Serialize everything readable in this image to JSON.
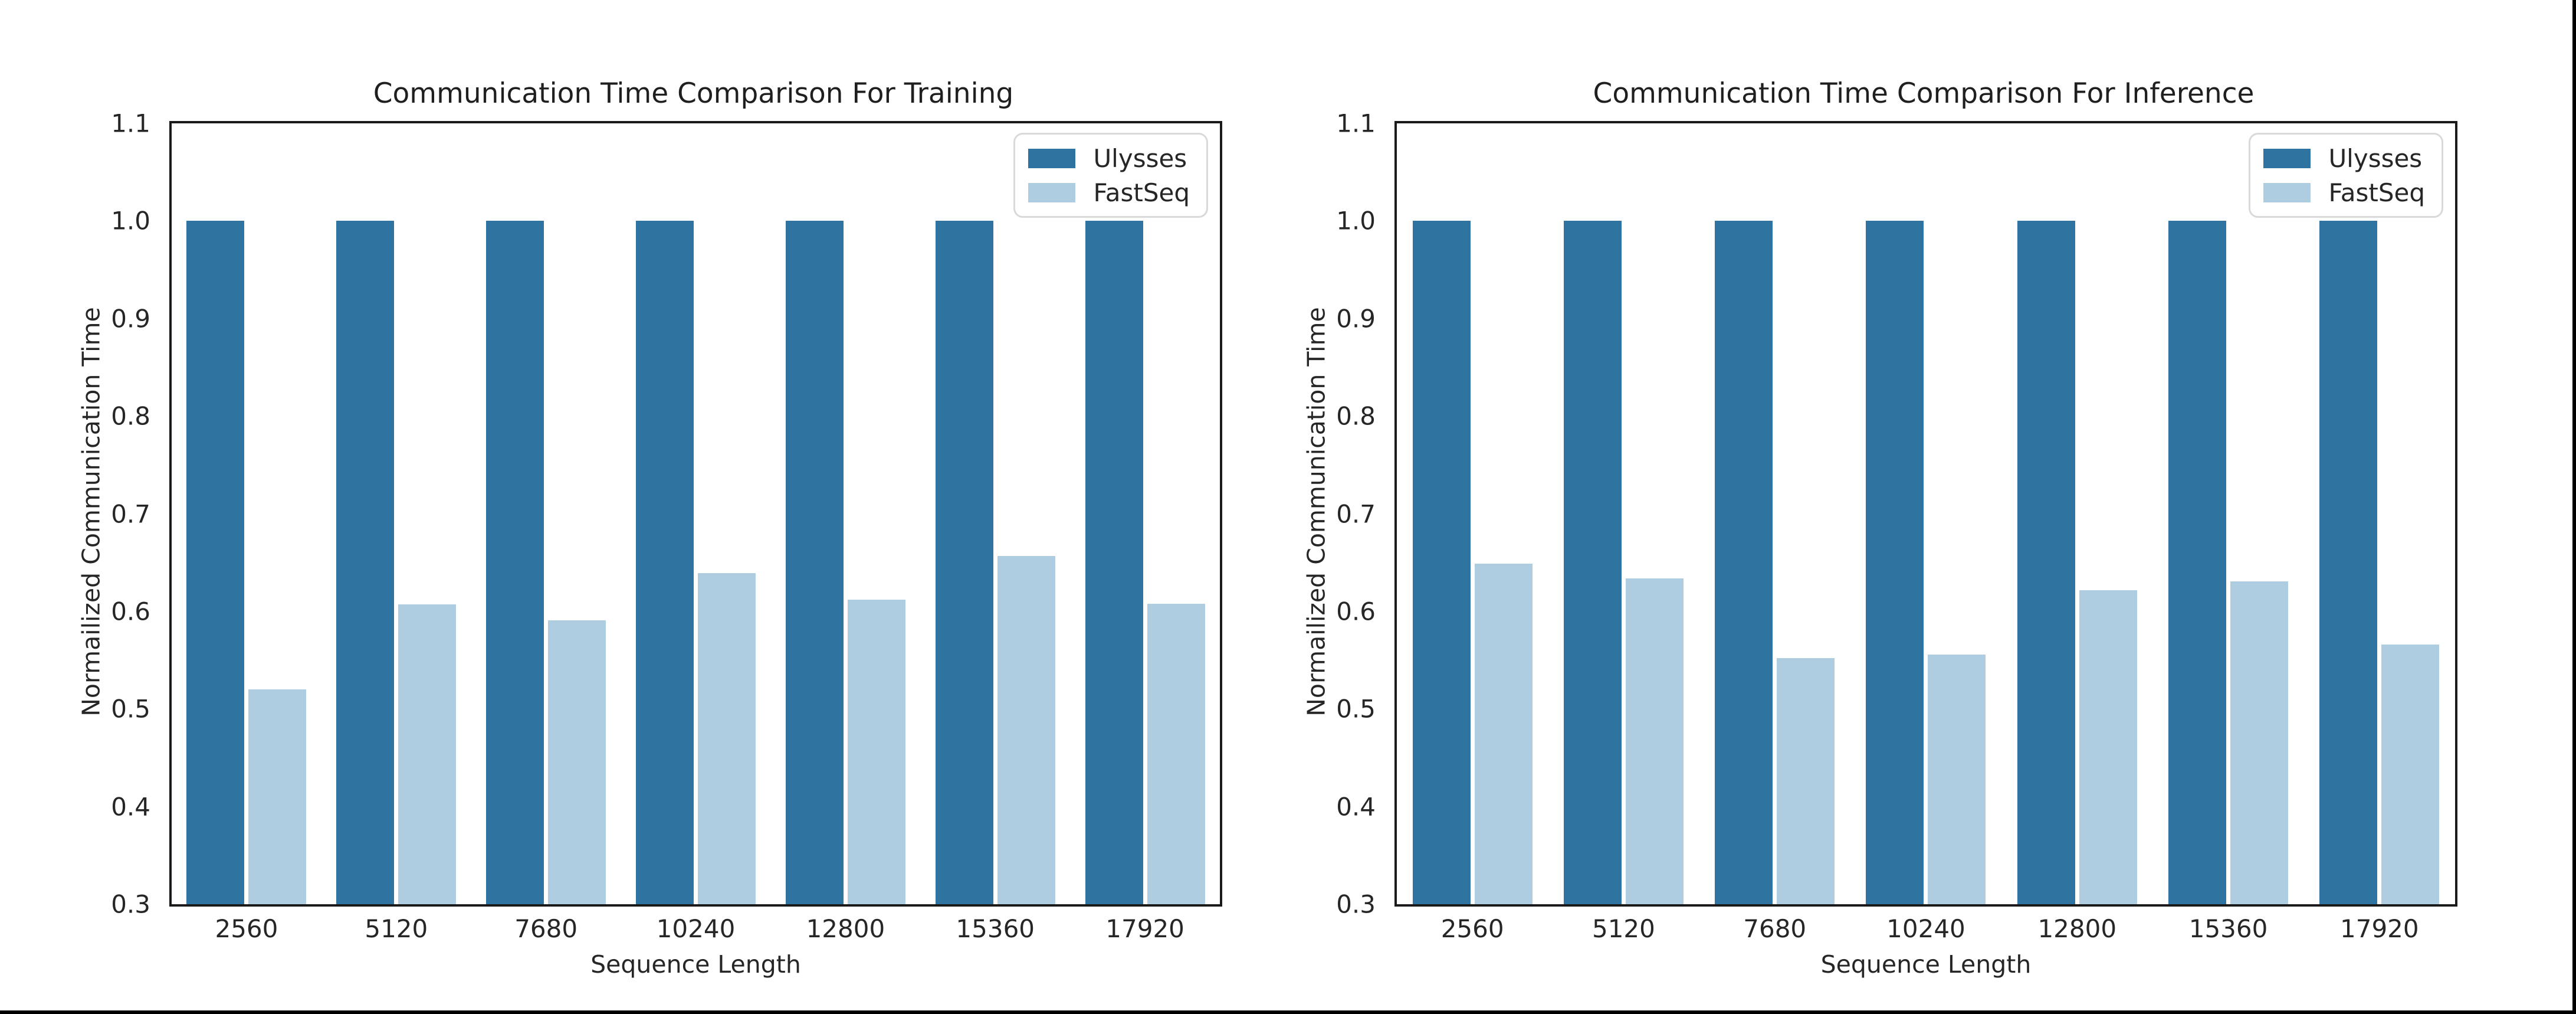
{
  "figure": {
    "background": "#ffffff",
    "outer_border_color": "#000000",
    "spine_color": "#1a1a1a",
    "legend_border_color": "#d9d9d9",
    "text_color": "#262626",
    "series_colors": {
      "ulysses": "#2F73A0",
      "fastseq": "#AFCDE1"
    }
  },
  "chart_data": [
    {
      "type": "bar",
      "title": "Communication Time Comparison For Training",
      "xlabel": "Sequence Length",
      "ylabel": "Normailized Communication Time",
      "categories": [
        "2560",
        "5120",
        "7680",
        "10240",
        "12800",
        "15360",
        "17920"
      ],
      "series": [
        {
          "name": "Ulysses",
          "values": [
            1.0,
            1.0,
            1.0,
            1.0,
            1.0,
            1.0,
            1.0
          ]
        },
        {
          "name": "FastSeq",
          "values": [
            0.52,
            0.607,
            0.591,
            0.639,
            0.612,
            0.657,
            0.608
          ]
        }
      ],
      "ylim": [
        0.3,
        1.1
      ],
      "yticks": [
        0.3,
        0.4,
        0.5,
        0.6,
        0.7,
        0.8,
        0.9,
        1.0,
        1.1
      ],
      "legend_position": "upper right",
      "grid": false
    },
    {
      "type": "bar",
      "title": "Communication Time Comparison For Inference",
      "xlabel": "Sequence Length",
      "ylabel": "Normailized Communication Time",
      "categories": [
        "2560",
        "5120",
        "7680",
        "10240",
        "12800",
        "15360",
        "17920"
      ],
      "series": [
        {
          "name": "Ulysses",
          "values": [
            1.0,
            1.0,
            1.0,
            1.0,
            1.0,
            1.0,
            1.0
          ]
        },
        {
          "name": "FastSeq",
          "values": [
            0.649,
            0.634,
            0.552,
            0.556,
            0.622,
            0.631,
            0.566
          ]
        }
      ],
      "ylim": [
        0.3,
        1.1
      ],
      "yticks": [
        0.3,
        0.4,
        0.5,
        0.6,
        0.7,
        0.8,
        0.9,
        1.0,
        1.1
      ],
      "legend_position": "upper right",
      "grid": false
    }
  ]
}
